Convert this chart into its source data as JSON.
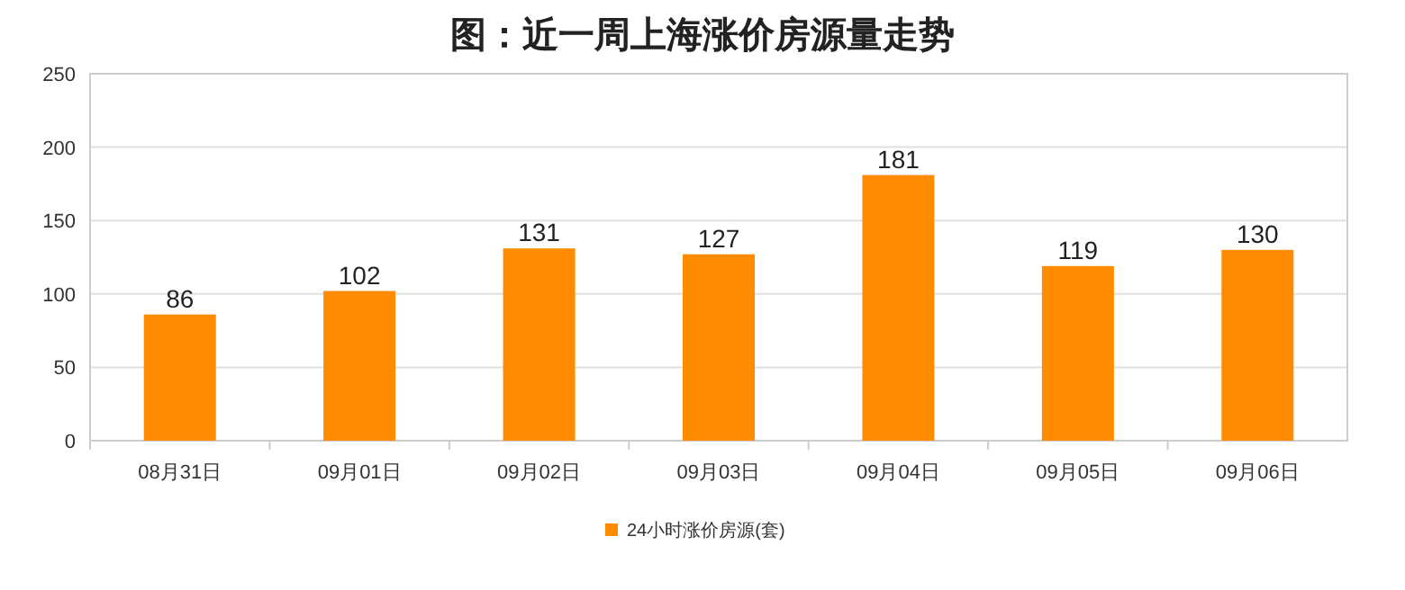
{
  "chart_data": {
    "type": "bar",
    "title": "图：近一周上海涨价房源量走势",
    "categories": [
      "08月31日",
      "09月01日",
      "09月02日",
      "09月03日",
      "09月04日",
      "09月05日",
      "09月06日"
    ],
    "series": [
      {
        "name": "24小时涨价房源(套)",
        "color": "#ff8c00",
        "values": [
          86,
          102,
          131,
          127,
          181,
          119,
          130
        ]
      }
    ],
    "ylim": [
      0,
      250
    ],
    "yticks": [
      0,
      50,
      100,
      150,
      200,
      250
    ],
    "grid": "y",
    "legend": "bottom",
    "data_labels": true
  }
}
